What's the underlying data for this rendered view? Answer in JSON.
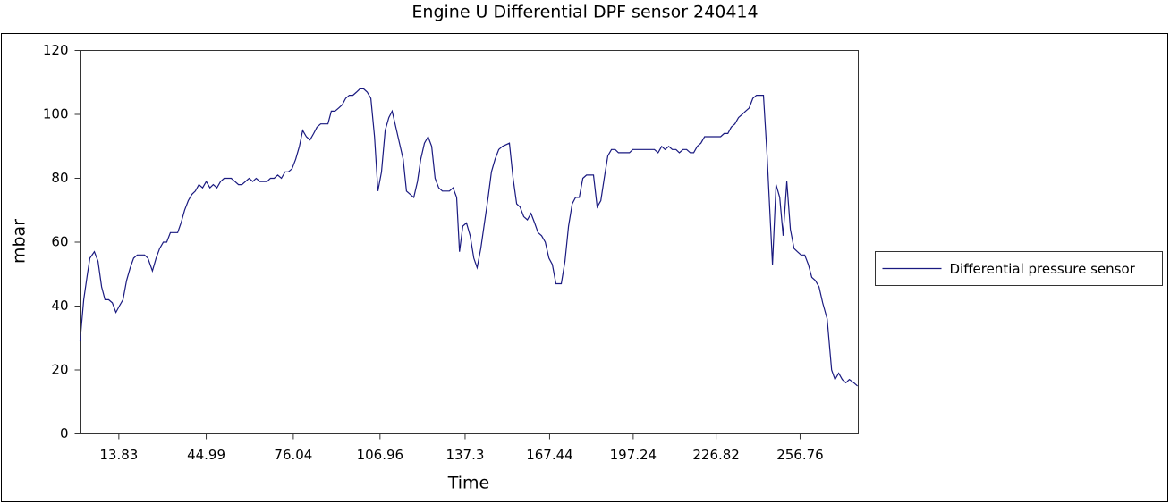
{
  "chart_data": {
    "type": "line",
    "title": "Engine U   Differential DPF sensor 240414",
    "x_label": "Time",
    "y_label": "mbar",
    "xlim": [
      0,
      277.5
    ],
    "ylim": [
      0,
      120
    ],
    "xticks": [
      13.83,
      44.99,
      76.04,
      106.96,
      137.3,
      167.44,
      197.24,
      226.82,
      256.76
    ],
    "yticks": [
      0,
      20,
      40,
      60,
      80,
      100,
      120
    ],
    "grid": false,
    "legend": "right",
    "x": [
      0,
      1.3,
      2.6,
      3.5,
      5.1,
      6.4,
      7.7,
      8.9,
      10.2,
      11.5,
      12.8,
      14.0,
      15.3,
      16.6,
      17.9,
      19.1,
      20.4,
      21.7,
      23.0,
      24.2,
      25.8,
      27.1,
      28.4,
      29.7,
      30.9,
      32.2,
      33.5,
      34.8,
      36.0,
      37.3,
      38.6,
      39.9,
      41.1,
      42.4,
      43.7,
      45.0,
      46.3,
      47.5,
      48.8,
      50.1,
      51.4,
      52.6,
      53.9,
      55.2,
      56.5,
      57.7,
      59.0,
      60.3,
      61.6,
      62.8,
      64.1,
      65.4,
      66.7,
      67.9,
      69.2,
      70.5,
      71.8,
      73.1,
      74.3,
      75.6,
      76.9,
      78.2,
      79.4,
      80.7,
      82.0,
      83.3,
      84.5,
      85.8,
      87.1,
      88.4,
      89.6,
      90.9,
      92.2,
      93.5,
      94.7,
      96.0,
      97.3,
      98.6,
      99.8,
      101.1,
      102.4,
      103.7,
      105.0,
      106.2,
      107.5,
      108.8,
      110.1,
      111.3,
      112.6,
      113.9,
      115.2,
      116.4,
      117.7,
      119.0,
      120.3,
      121.5,
      122.8,
      124.1,
      125.4,
      126.6,
      127.9,
      129.2,
      130.5,
      131.7,
      133.0,
      134.3,
      135.3,
      136.5,
      137.8,
      139.1,
      140.4,
      141.6,
      142.9,
      144.2,
      145.5,
      146.7,
      148.0,
      149.3,
      150.6,
      153.1,
      154.4,
      155.7,
      156.9,
      158.2,
      159.5,
      160.8,
      162.1,
      163.3,
      164.6,
      165.9,
      167.2,
      168.4,
      169.7,
      171.6,
      172.9,
      174.2,
      175.5,
      176.7,
      178.0,
      179.3,
      180.6,
      183.1,
      184.4,
      185.7,
      186.9,
      188.2,
      189.5,
      190.8,
      192.0,
      193.3,
      195.9,
      197.1,
      199.7,
      204.8,
      206.1,
      207.4,
      208.6,
      209.9,
      211.2,
      212.5,
      213.7,
      215.0,
      216.3,
      217.6,
      218.8,
      220.1,
      221.4,
      222.7,
      225.2,
      228.4,
      229.7,
      231.0,
      232.2,
      233.5,
      234.8,
      236.1,
      237.3,
      238.6,
      239.9,
      241.2,
      243.7,
      245.0,
      246.9,
      248.2,
      249.5,
      250.7,
      252.0,
      253.3,
      254.6,
      255.8,
      257.1,
      258.4,
      259.7,
      260.9,
      262.2,
      263.5,
      264.8,
      266.4,
      268.0,
      269.2,
      270.5,
      271.8,
      273.1,
      274.3,
      275.9,
      277.2
    ],
    "series": [
      {
        "name": "Differential pressure sensor",
        "color": "#1a1a80",
        "values": [
          29,
          42,
          50,
          55,
          57,
          54,
          46,
          42,
          42,
          41,
          38,
          40,
          42,
          48,
          52,
          55,
          56,
          56,
          56,
          55,
          51,
          55,
          58,
          60,
          60,
          63,
          63,
          63,
          66,
          70,
          73,
          75,
          76,
          78,
          77,
          79,
          77,
          78,
          77,
          79,
          80,
          80,
          80,
          79,
          78,
          78,
          79,
          80,
          79,
          80,
          79,
          79,
          79,
          80,
          80,
          81,
          80,
          82,
          82,
          83,
          86,
          90,
          95,
          93,
          92,
          94,
          96,
          97,
          97,
          97,
          101,
          101,
          102,
          103,
          105,
          106,
          106,
          107,
          108,
          108,
          107,
          105,
          93,
          76,
          82,
          95,
          99,
          101,
          96,
          91,
          86,
          76,
          75,
          74,
          79,
          86,
          91,
          93,
          90,
          80,
          77,
          76,
          76,
          76,
          77,
          74,
          57,
          65,
          66,
          62,
          55,
          52,
          58,
          66,
          74,
          82,
          86,
          89,
          90,
          91,
          80,
          72,
          71,
          68,
          67,
          69,
          66,
          63,
          62,
          60,
          55,
          53,
          47,
          47,
          54,
          65,
          72,
          74,
          74,
          80,
          81,
          81,
          71,
          73,
          80,
          87,
          89,
          89,
          88,
          88,
          88,
          89,
          89,
          89,
          88,
          90,
          89,
          90,
          89,
          89,
          88,
          89,
          89,
          88,
          88,
          90,
          91,
          93,
          93,
          93,
          94,
          94,
          96,
          97,
          99,
          100,
          101,
          102,
          105,
          106,
          106,
          87,
          53,
          78,
          74,
          62,
          79,
          64,
          58,
          57,
          56,
          56,
          53,
          49,
          48,
          46,
          41,
          36,
          20,
          17,
          19,
          17,
          16,
          17,
          16,
          15
        ]
      }
    ]
  }
}
